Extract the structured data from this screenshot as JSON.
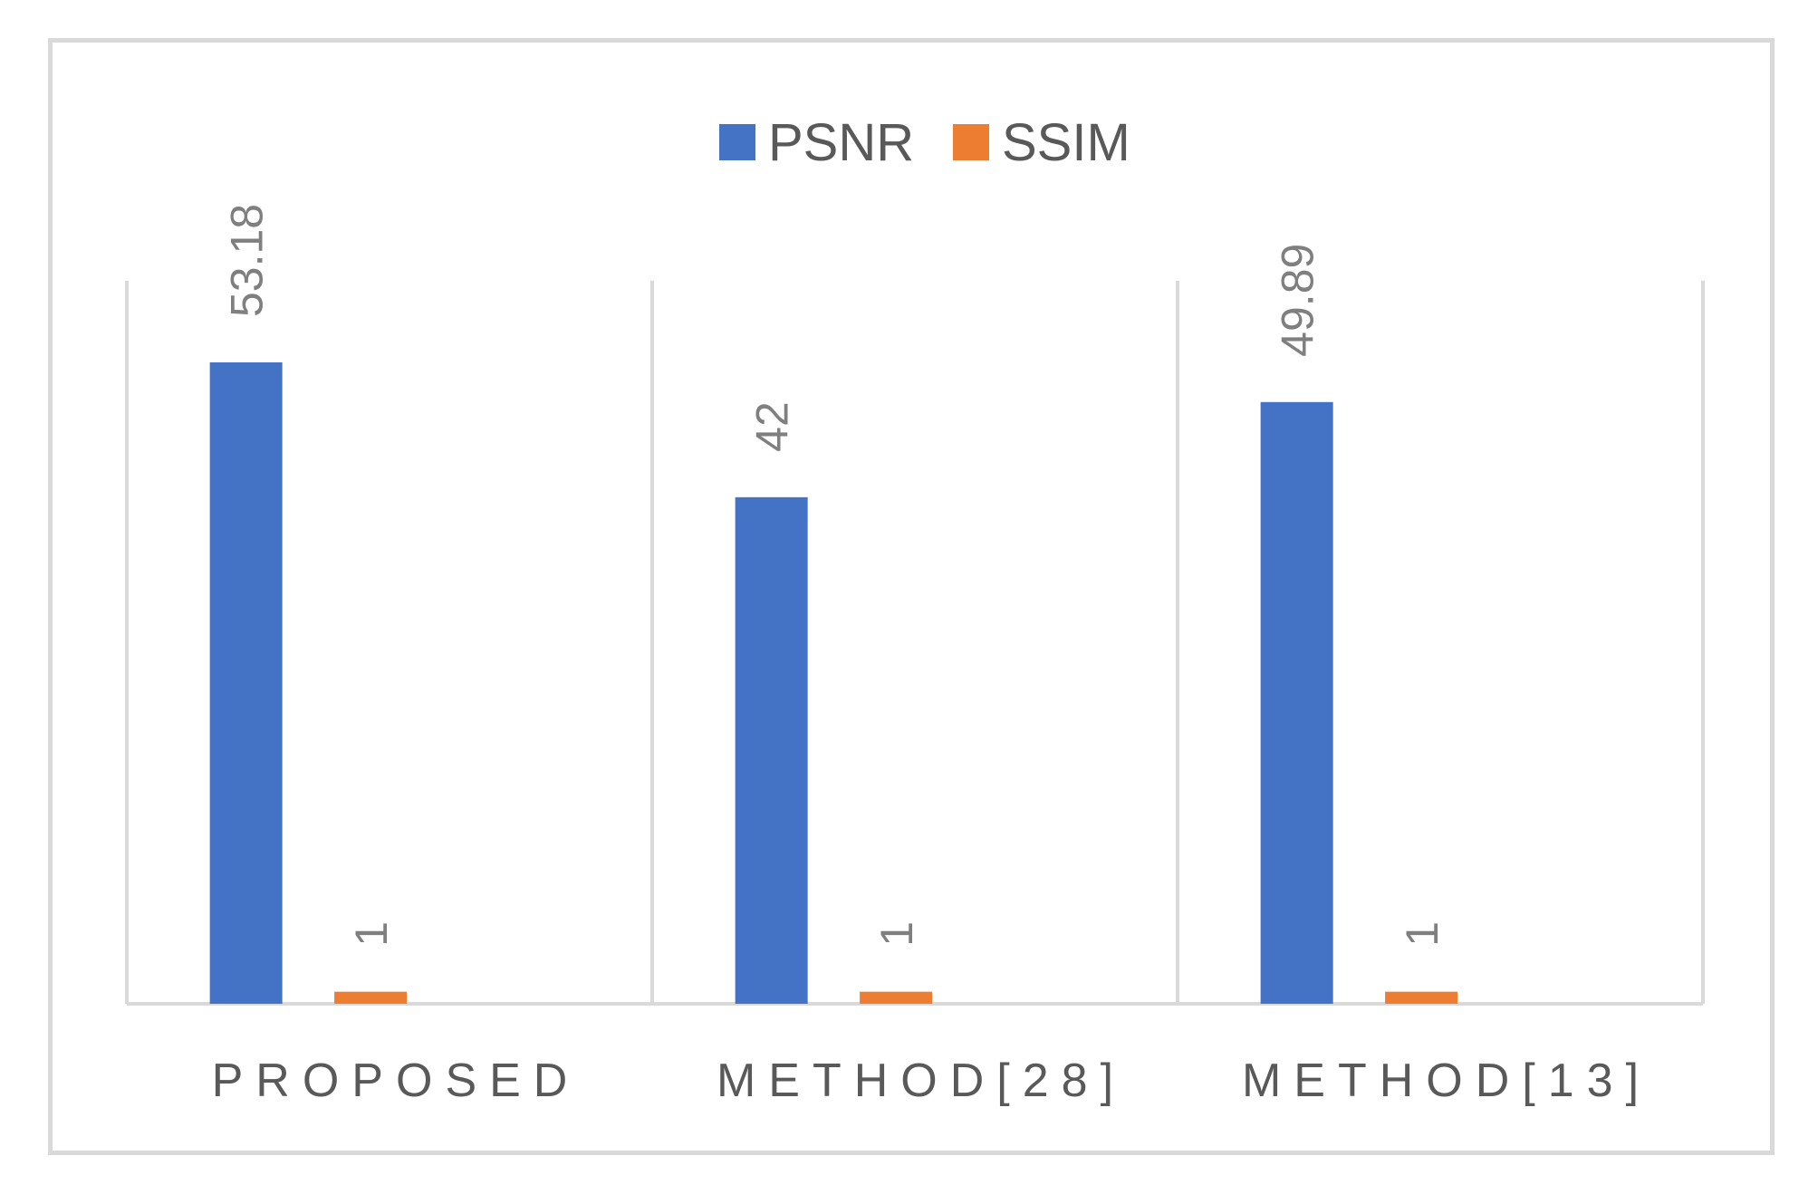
{
  "chart_data": {
    "type": "bar",
    "categories": [
      "PROPOSED",
      "METHOD[28]",
      "METHOD[13]"
    ],
    "series": [
      {
        "name": "PSNR",
        "values": [
          53.18,
          42,
          49.89
        ],
        "labels": [
          "53.18",
          "42",
          "49.89"
        ],
        "color": "#4472c4"
      },
      {
        "name": "SSIM",
        "values": [
          1,
          1,
          1
        ],
        "labels": [
          "1",
          "1",
          "1"
        ],
        "color": "#ed7d31"
      }
    ],
    "ylim": [
      0,
      60
    ],
    "legend_position": "top-center",
    "grid": "vertical-category-separators",
    "data_label_orientation": "rotated-vertical"
  }
}
